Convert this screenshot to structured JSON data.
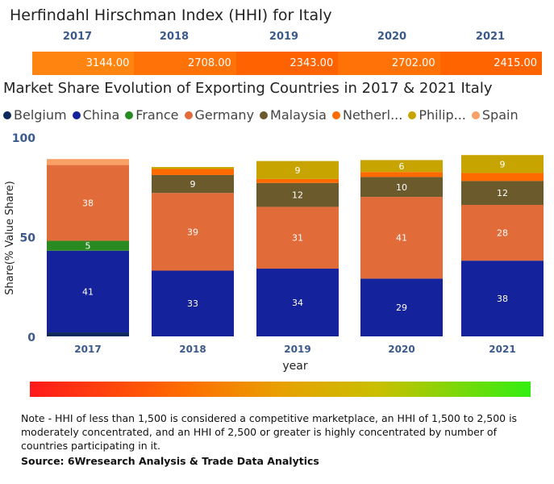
{
  "hhi": {
    "title": "Herfindahl Hirschman Index (HHI) for Italy",
    "years": [
      "2017",
      "2018",
      "2019",
      "2020",
      "2021"
    ],
    "values": [
      "3144.00",
      "2708.00",
      "2343.00",
      "2702.00",
      "2415.00"
    ],
    "colors": [
      "#ff8410",
      "#ff7208",
      "#ff6200",
      "#ff7208",
      "#ff6400"
    ]
  },
  "chart_data": {
    "type": "bar",
    "stacked": true,
    "title": "Market Share Evolution of Exporting Countries in 2017 & 2021 Italy",
    "xlabel": "year",
    "ylabel": "Share(% Value Share)",
    "ylim": [
      0,
      100
    ],
    "yticks": [
      "0",
      "50",
      "100"
    ],
    "categories": [
      "2017",
      "2018",
      "2019",
      "2020",
      "2021"
    ],
    "legend": [
      "Belgium",
      "China",
      "France",
      "Germany",
      "Malaysia",
      "Netherl...",
      "Philip...",
      "Spain"
    ],
    "series": [
      {
        "name": "Belgium",
        "color": "#0d2a5a",
        "values": [
          2,
          0,
          0,
          0,
          0
        ]
      },
      {
        "name": "China",
        "color": "#14239c",
        "values": [
          41,
          33,
          34,
          29,
          38
        ]
      },
      {
        "name": "France",
        "color": "#2a8a22",
        "values": [
          5,
          0,
          0,
          0,
          0
        ]
      },
      {
        "name": "Germany",
        "color": "#e26b3a",
        "values": [
          38,
          39,
          31,
          41,
          28
        ]
      },
      {
        "name": "Malaysia",
        "color": "#6b5a2c",
        "values": [
          0,
          9,
          12,
          10,
          12
        ]
      },
      {
        "name": "Netherlands",
        "color": "#ff6a00",
        "values": [
          0,
          3,
          2,
          2.5,
          4
        ]
      },
      {
        "name": "Philippines",
        "color": "#c8a400",
        "values": [
          0,
          1,
          9,
          6,
          9
        ]
      },
      {
        "name": "Spain",
        "color": "#f9a066",
        "values": [
          3,
          0,
          0,
          0,
          0
        ]
      }
    ],
    "data_labels_min": 5
  },
  "note": "Note - HHI of less than 1,500 is considered a competitive marketplace, an HHI of 1,500 to 2,500 is moderately concentrated, and an HHI of 2,500 or greater is highly concentrated by number of countries participating in it.",
  "source": "Source: 6Wresearch Analysis & Trade Data Analytics"
}
